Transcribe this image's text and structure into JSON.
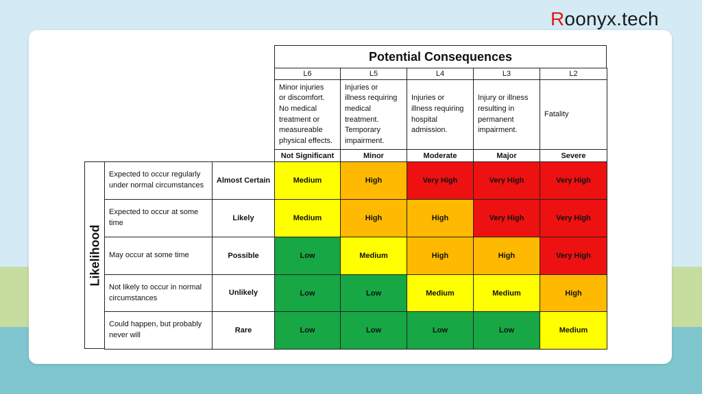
{
  "brand": {
    "first_letter": "R",
    "rest": "oonyx.tech"
  },
  "colors": {
    "low": "#17a745",
    "medium": "#ffff00",
    "high": "#ffb900",
    "very_high": "#ee1111"
  },
  "matrix": {
    "title": "Potential Consequences",
    "columns": [
      {
        "level": "L6",
        "description": "Minor injuries\nor discomfort.\nNo medical\ntreatment or\nmeasureable\nphysical effects.",
        "severity": "Not Significant"
      },
      {
        "level": "L5",
        "description": "Injuries or\nillness requiring\nmedical\ntreatment.\nTemporary\nimpairment.",
        "severity": "Minor"
      },
      {
        "level": "L4",
        "description": "Injuries or\nillness requiring\nhospital\nadmission.",
        "severity": "Moderate"
      },
      {
        "level": "L3",
        "description": "Injury or illness\nresulting in\npermanent\nimpairment.",
        "severity": "Major"
      },
      {
        "level": "L2",
        "description": "Fatality",
        "severity": "Severe"
      }
    ],
    "likelihood_label": "Likelihood",
    "rows": [
      {
        "description": "Expected to occur regularly under normal circumstances",
        "label": "Almost Certain",
        "ratings": [
          "Medium",
          "High",
          "Very High",
          "Very High",
          "Very High"
        ]
      },
      {
        "description": "Expected to occur at some time",
        "label": "Likely",
        "ratings": [
          "Medium",
          "High",
          "High",
          "Very High",
          "Very High"
        ]
      },
      {
        "description": "May occur at some time",
        "label": "Possible",
        "ratings": [
          "Low",
          "Medium",
          "High",
          "High",
          "Very High"
        ]
      },
      {
        "description": "Not likely to occur in normal circumstances",
        "label": "Unlikely",
        "ratings": [
          "Low",
          "Low",
          "Medium",
          "Medium",
          "High"
        ]
      },
      {
        "description": "Could happen, but probably never will",
        "label": "Rare",
        "ratings": [
          "Low",
          "Low",
          "Low",
          "Low",
          "Medium"
        ]
      }
    ]
  }
}
